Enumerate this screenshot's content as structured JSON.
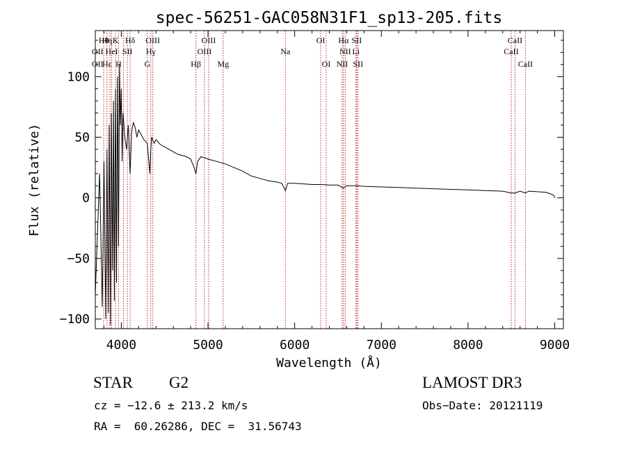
{
  "chart_data": {
    "type": "line",
    "title": "spec-56251-GAC058N31F1_sp13-205.fits",
    "xlabel": "Wavelength (Å)",
    "ylabel": "Flux (relative)",
    "xlim": [
      3700,
      9100
    ],
    "ylim": [
      -108,
      138
    ],
    "x_ticks": [
      4000,
      5000,
      6000,
      7000,
      8000,
      9000
    ],
    "x_tick_labels": [
      "4000",
      "5000",
      "6000",
      "7000",
      "8000",
      "9000"
    ],
    "y_ticks": [
      -100,
      -50,
      0,
      50,
      100
    ],
    "y_tick_labels": [
      "−100",
      "−50",
      "0",
      "50",
      "100"
    ],
    "grid": false,
    "series": [
      {
        "name": "spectrum",
        "color": "#000000",
        "x": [
          3700,
          3750,
          3780,
          3800,
          3820,
          3835,
          3850,
          3860,
          3875,
          3885,
          3900,
          3910,
          3920,
          3933,
          3945,
          3955,
          3968,
          3980,
          3990,
          4000,
          4010,
          4020,
          4040,
          4060,
          4080,
          4101,
          4120,
          4140,
          4160,
          4180,
          4200,
          4230,
          4260,
          4300,
          4330,
          4340,
          4350,
          4380,
          4400,
          4450,
          4500,
          4550,
          4600,
          4650,
          4700,
          4750,
          4800,
          4840,
          4861,
          4880,
          4920,
          4960,
          5000,
          5100,
          5200,
          5300,
          5400,
          5500,
          5600,
          5700,
          5800,
          5850,
          5893,
          5920,
          6000,
          6100,
          6200,
          6300,
          6400,
          6500,
          6563,
          6600,
          6700,
          6800,
          7000,
          7200,
          7400,
          7600,
          7800,
          8000,
          8200,
          8400,
          8498,
          8542,
          8600,
          8662,
          8700,
          8800,
          8900,
          8960,
          8990,
          9000
        ],
        "y": [
          -80,
          20,
          -90,
          30,
          -100,
          40,
          -95,
          60,
          -105,
          70,
          -60,
          80,
          -85,
          90,
          -70,
          100,
          -40,
          110,
          60,
          90,
          30,
          70,
          50,
          40,
          60,
          20,
          55,
          62,
          58,
          50,
          56,
          52,
          48,
          45,
          20,
          40,
          50,
          45,
          48,
          44,
          42,
          40,
          38,
          36,
          35,
          34,
          32,
          25,
          20,
          30,
          34,
          33,
          32,
          30,
          28,
          25,
          22,
          18,
          16,
          14,
          13,
          12,
          6,
          12,
          12,
          11.5,
          11,
          11,
          10.5,
          10.5,
          8,
          10,
          10,
          9.5,
          9,
          8.5,
          8,
          7.5,
          7,
          6.5,
          6,
          5.5,
          4,
          4,
          5.5,
          4,
          5.5,
          5,
          4.5,
          3,
          2,
          0
        ]
      }
    ],
    "line_markers": {
      "wavelengths": [
        3797,
        3835,
        3869,
        3889,
        3933,
        3968,
        4026,
        4070,
        4102,
        4300,
        4341,
        4363,
        4861,
        4959,
        5007,
        5175,
        5893,
        6300,
        6364,
        6548,
        6563,
        6583,
        6707,
        6716,
        6731,
        8498,
        8542,
        8662
      ],
      "labels": [
        {
          "text": "Hθ",
          "x": 3797,
          "row": 1
        },
        {
          "text": "OII",
          "x": 3727,
          "row": 2
        },
        {
          "text": "OII",
          "x": 3727,
          "row": 3
        },
        {
          "text": "Hη",
          "x": 3835,
          "row": 1
        },
        {
          "text": "HeI",
          "x": 3889,
          "row": 2
        },
        {
          "text": "Hϵ",
          "x": 3835,
          "row": 3
        },
        {
          "text": "K",
          "x": 3933,
          "row": 1
        },
        {
          "text": "SII",
          "x": 4070,
          "row": 2
        },
        {
          "text": "H",
          "x": 3968,
          "row": 3
        },
        {
          "text": "Hδ",
          "x": 4102,
          "row": 1
        },
        {
          "text": "OIII",
          "x": 4363,
          "row": 1
        },
        {
          "text": "Hγ",
          "x": 4341,
          "row": 2
        },
        {
          "text": "G",
          "x": 4300,
          "row": 3
        },
        {
          "text": "Hβ",
          "x": 4861,
          "row": 3
        },
        {
          "text": "OIII",
          "x": 5007,
          "row": 1
        },
        {
          "text": "OIII",
          "x": 4959,
          "row": 2
        },
        {
          "text": "Mg",
          "x": 5175,
          "row": 3
        },
        {
          "text": "Na",
          "x": 5893,
          "row": 2
        },
        {
          "text": "OI",
          "x": 6300,
          "row": 1
        },
        {
          "text": "OI",
          "x": 6364,
          "row": 3
        },
        {
          "text": "Hα",
          "x": 6563,
          "row": 1
        },
        {
          "text": "NII",
          "x": 6583,
          "row": 2
        },
        {
          "text": "NII",
          "x": 6548,
          "row": 3
        },
        {
          "text": "SII",
          "x": 6716,
          "row": 1
        },
        {
          "text": "Li",
          "x": 6707,
          "row": 2
        },
        {
          "text": "SII",
          "x": 6731,
          "row": 3
        },
        {
          "text": "CaII",
          "x": 8542,
          "row": 1
        },
        {
          "text": "CaII",
          "x": 8498,
          "row": 2
        },
        {
          "text": "CaII",
          "x": 8662,
          "row": 3
        }
      ],
      "color": "#b22222"
    }
  },
  "info": {
    "object_class": "STAR",
    "subclass": "G2",
    "survey": "LAMOST DR3",
    "velocity": "cz = −12.6 ± 213.2 km/s",
    "obs_date": "Obs−Date: 20121119",
    "coords": "RA =  60.26286, DEC =  31.56743"
  }
}
